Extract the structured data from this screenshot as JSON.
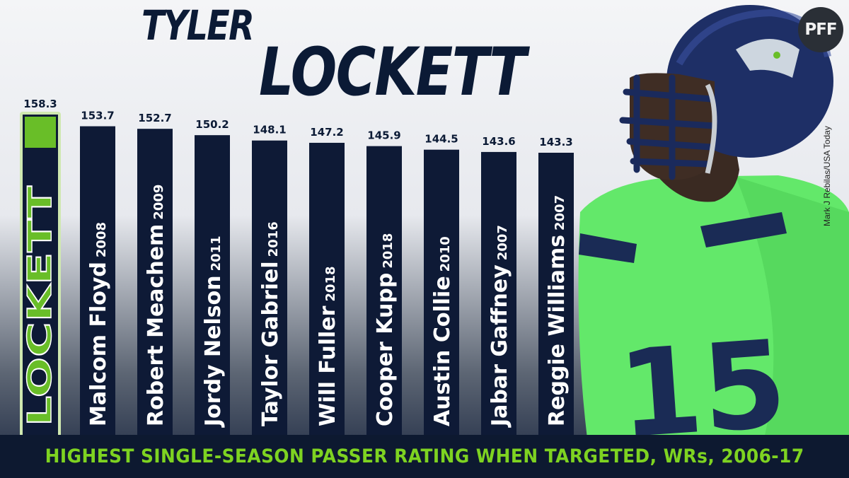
{
  "header": {
    "title_line1": "TYLER",
    "title_line2": "LOCKETT",
    "logo_text": "PFF",
    "photo_credit": "Mark J Rebilas/USA Today"
  },
  "footer": {
    "caption": "HIGHEST SINGLE-SEASON PASSER RATING WHEN TARGETED, WRs, 2006-17"
  },
  "colors": {
    "navy": "#0e1a36",
    "green": "#69be28",
    "highlight_glow": "#cfe8b0"
  },
  "chart_data": {
    "type": "bar",
    "title": "",
    "xlabel": "",
    "ylabel": "",
    "bars": [
      {
        "name": "LOCKETT",
        "year": "",
        "value": 158.3,
        "label": "158.3",
        "highlight": true
      },
      {
        "name": "Malcom Floyd",
        "year": "2008",
        "value": 153.7,
        "label": "153.7"
      },
      {
        "name": "Robert Meachem",
        "year": "2009",
        "value": 152.7,
        "label": "152.7"
      },
      {
        "name": "Jordy Nelson",
        "year": "2011",
        "value": 150.2,
        "label": "150.2"
      },
      {
        "name": "Taylor Gabriel",
        "year": "2016",
        "value": 148.1,
        "label": "148.1"
      },
      {
        "name": "Will Fuller",
        "year": "2018",
        "value": 147.2,
        "label": "147.2"
      },
      {
        "name": "Cooper Kupp",
        "year": "2018",
        "value": 145.9,
        "label": "145.9"
      },
      {
        "name": "Austin Collie",
        "year": "2010",
        "value": 144.5,
        "label": "144.5"
      },
      {
        "name": "Jabar Gaffney",
        "year": "2007",
        "value": 143.6,
        "label": "143.6"
      },
      {
        "name": "Reggie Williams",
        "year": "2007",
        "value": 143.3,
        "label": "143.3"
      }
    ]
  }
}
